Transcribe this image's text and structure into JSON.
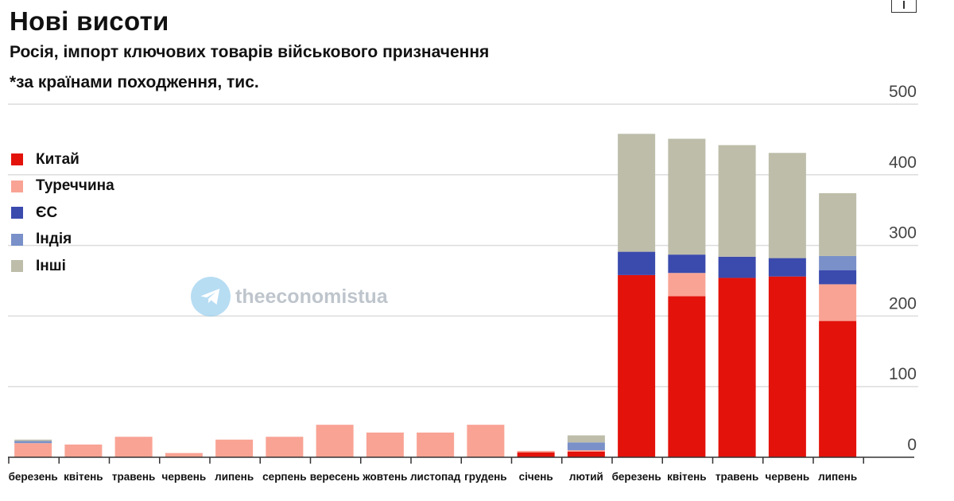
{
  "header": {
    "title": "Нові висоти",
    "subtitle": "Росія, імпорт ключових товарів військового призначення",
    "note": "*за країнами походження, тис."
  },
  "watermark": {
    "text": "theeconomistua",
    "icon": "telegram-icon"
  },
  "corner_icon": "export-icon",
  "chart_data": {
    "type": "bar",
    "stacked": true,
    "title": "Нові висоти",
    "subtitle": "Росія, імпорт ключових товарів військового призначення",
    "ylabel": "*за країнами походження, тис.",
    "ylim": [
      0,
      500
    ],
    "yticks": [
      0,
      100,
      200,
      300,
      400,
      500
    ],
    "yaxis_position": "right",
    "grid": true,
    "legend_position": "left",
    "categories": [
      "березень",
      "квітень",
      "травень",
      "червень",
      "липень",
      "серпень",
      "вересень",
      "жовтень",
      "листопад",
      "грудень",
      "січень",
      "лютий",
      "березень",
      "квітень",
      "травень",
      "червень",
      "липень"
    ],
    "series": [
      {
        "name": "Китай",
        "color": "#e3120b",
        "values": [
          0,
          0,
          0,
          0,
          0,
          0,
          0,
          0,
          0,
          0,
          7,
          8,
          258,
          228,
          254,
          256,
          193
        ]
      },
      {
        "name": "Туреччина",
        "color": "#f9a394",
        "values": [
          20,
          18,
          29,
          6,
          25,
          29,
          46,
          35,
          35,
          46,
          2,
          2,
          0,
          33,
          0,
          0,
          52
        ]
      },
      {
        "name": "ЄС",
        "color": "#3a4aad",
        "values": [
          0,
          0,
          0,
          0,
          0,
          0,
          0,
          0,
          0,
          0,
          0,
          0,
          33,
          26,
          30,
          26,
          20
        ]
      },
      {
        "name": "Індія",
        "color": "#7990c8",
        "values": [
          3,
          0,
          0,
          0,
          0,
          0,
          0,
          0,
          0,
          0,
          0,
          11,
          0,
          0,
          0,
          0,
          20
        ]
      },
      {
        "name": "Інші",
        "color": "#bdbdaa",
        "values": [
          2,
          0,
          0,
          0,
          0,
          0,
          0,
          0,
          0,
          0,
          0,
          10,
          167,
          164,
          158,
          149,
          89
        ]
      }
    ]
  }
}
